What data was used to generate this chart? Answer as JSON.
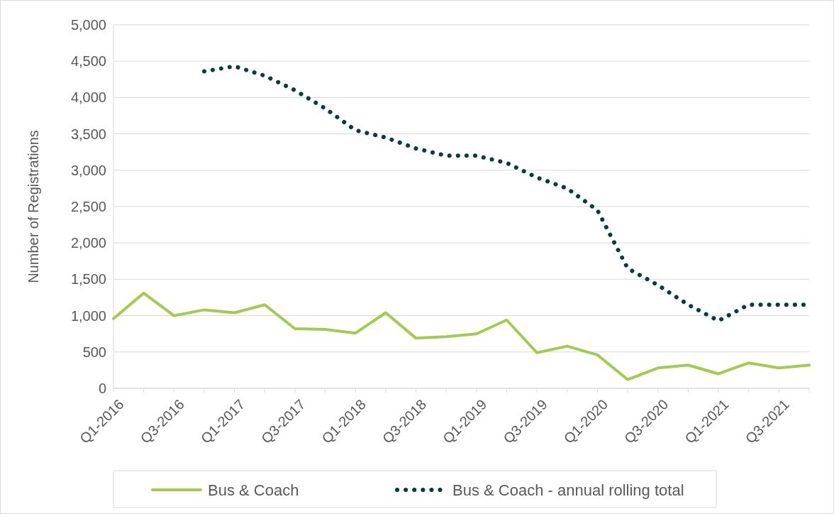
{
  "chart_data": {
    "type": "line",
    "ylabel": "Number of Registrations",
    "categories": [
      "Q1-2016",
      null,
      "Q3-2016",
      null,
      "Q1-2017",
      null,
      "Q3-2017",
      null,
      "Q1-2018",
      null,
      "Q3-2018",
      null,
      "Q1-2019",
      null,
      "Q3-2019",
      null,
      "Q1-2020",
      null,
      "Q3-2020",
      null,
      "Q1-2021",
      null,
      "Q3-2021",
      null
    ],
    "series": [
      {
        "name": "Bus & Coach",
        "color": "#a6c94f",
        "line_style": "solid",
        "values": [
          960,
          1310,
          1000,
          1080,
          1040,
          1150,
          820,
          810,
          760,
          1040,
          690,
          710,
          750,
          940,
          490,
          580,
          460,
          120,
          280,
          320,
          200,
          350,
          280,
          320
        ]
      },
      {
        "name": "Bus & Coach - annual rolling total",
        "color": "#0b3c3d",
        "line_style": "dotted",
        "values": [
          null,
          null,
          null,
          4360,
          4430,
          4300,
          4100,
          3850,
          3550,
          3450,
          3300,
          3200,
          3200,
          3100,
          2900,
          2750,
          2450,
          1650,
          1420,
          1150,
          930,
          1150,
          1150,
          1150
        ]
      }
    ],
    "ylim": [
      0,
      5000
    ],
    "yticks": [
      {
        "value": 0,
        "label": "0"
      },
      {
        "value": 500,
        "label": "500"
      },
      {
        "value": 1000,
        "label": "1,000"
      },
      {
        "value": 1500,
        "label": "1,500"
      },
      {
        "value": 2000,
        "label": "2,000"
      },
      {
        "value": 2500,
        "label": "2,500"
      },
      {
        "value": 3000,
        "label": "3,000"
      },
      {
        "value": 3500,
        "label": "3,500"
      },
      {
        "value": 4000,
        "label": "4,000"
      },
      {
        "value": 4500,
        "label": "4,500"
      },
      {
        "value": 5000,
        "label": "5,000"
      }
    ],
    "grid": "y",
    "legend": "bottom"
  }
}
